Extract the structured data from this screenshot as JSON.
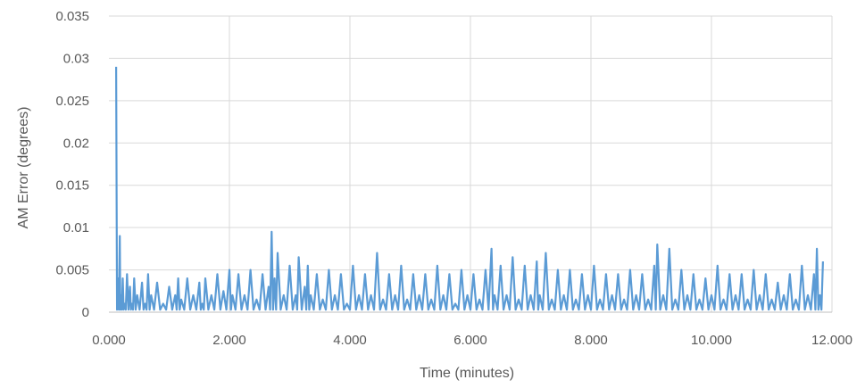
{
  "chart_data": {
    "type": "line",
    "title": "",
    "xlabel": "Time (minutes)",
    "ylabel": "AM Error (degrees)",
    "xlim": [
      0,
      12000
    ],
    "ylim": [
      0,
      0.035
    ],
    "x_ticks": [
      "0.000",
      "2.000",
      "4.000",
      "6.000",
      "8.000",
      "10.000",
      "12.000"
    ],
    "y_ticks": [
      "0",
      "0.005",
      "0.01",
      "0.015",
      "0.02",
      "0.025",
      "0.03",
      "0.035"
    ],
    "grid": true,
    "legend": "none",
    "color": "#5b9bd5",
    "series": [
      {
        "x": [
          120,
          150,
          180,
          200,
          230,
          260,
          300,
          350,
          380,
          420,
          470,
          550,
          600,
          650,
          700,
          800,
          900,
          1000,
          1100,
          1150,
          1200,
          1300,
          1400,
          1500,
          1550,
          1600,
          1700,
          1800,
          1900,
          2000,
          2050,
          2150,
          2250,
          2350,
          2450,
          2550,
          2650,
          2700,
          2750,
          2800,
          2900,
          3000,
          3100,
          3150,
          3250,
          3300,
          3350,
          3450,
          3550,
          3650,
          3750,
          3850,
          3950,
          4050,
          4150,
          4250,
          4350,
          4450,
          4550,
          4650,
          4750,
          4850,
          4950,
          5050,
          5150,
          5250,
          5350,
          5450,
          5550,
          5650,
          5750,
          5850,
          5950,
          6050,
          6150,
          6250,
          6350,
          6400,
          6500,
          6600,
          6700,
          6800,
          6900,
          7000,
          7100,
          7150,
          7250,
          7350,
          7450,
          7550,
          7650,
          7750,
          7850,
          7950,
          8050,
          8150,
          8250,
          8350,
          8450,
          8550,
          8650,
          8750,
          8850,
          8950,
          9050,
          9100,
          9200,
          9300,
          9400,
          9500,
          9600,
          9700,
          9800,
          9900,
          10000,
          10100,
          10200,
          10300,
          10400,
          10500,
          10600,
          10700,
          10800,
          10900,
          11000,
          11100,
          11200,
          11300,
          11400,
          11500,
          11600,
          11700,
          11750,
          11800,
          11850
        ],
        "y": [
          0.029,
          0.004,
          0.009,
          0.002,
          0.004,
          0.001,
          0.0045,
          0.003,
          0.001,
          0.004,
          0.002,
          0.0035,
          0.001,
          0.0045,
          0.002,
          0.0035,
          0.001,
          0.003,
          0.002,
          0.004,
          0.0015,
          0.004,
          0.002,
          0.0035,
          0.001,
          0.004,
          0.002,
          0.0045,
          0.0025,
          0.005,
          0.002,
          0.0045,
          0.002,
          0.005,
          0.0015,
          0.0045,
          0.003,
          0.0095,
          0.004,
          0.007,
          0.002,
          0.0055,
          0.002,
          0.0065,
          0.003,
          0.0055,
          0.002,
          0.0045,
          0.0015,
          0.005,
          0.002,
          0.0045,
          0.001,
          0.0055,
          0.002,
          0.0045,
          0.002,
          0.007,
          0.0015,
          0.0045,
          0.002,
          0.0055,
          0.0015,
          0.0045,
          0.002,
          0.0045,
          0.0015,
          0.0055,
          0.002,
          0.0045,
          0.001,
          0.005,
          0.002,
          0.0045,
          0.0015,
          0.005,
          0.0075,
          0.002,
          0.0055,
          0.002,
          0.0065,
          0.0015,
          0.0055,
          0.002,
          0.006,
          0.002,
          0.007,
          0.0015,
          0.005,
          0.002,
          0.005,
          0.0015,
          0.0045,
          0.002,
          0.0055,
          0.0015,
          0.0045,
          0.002,
          0.0045,
          0.0015,
          0.005,
          0.002,
          0.0045,
          0.0015,
          0.0055,
          0.008,
          0.002,
          0.0075,
          0.0015,
          0.005,
          0.002,
          0.0045,
          0.0015,
          0.004,
          0.002,
          0.0055,
          0.0015,
          0.0045,
          0.002,
          0.0045,
          0.0015,
          0.005,
          0.002,
          0.0045,
          0.0015,
          0.0035,
          0.002,
          0.0045,
          0.0015,
          0.0055,
          0.002,
          0.0045,
          0.0075,
          0.002,
          0.006
        ]
      }
    ]
  }
}
